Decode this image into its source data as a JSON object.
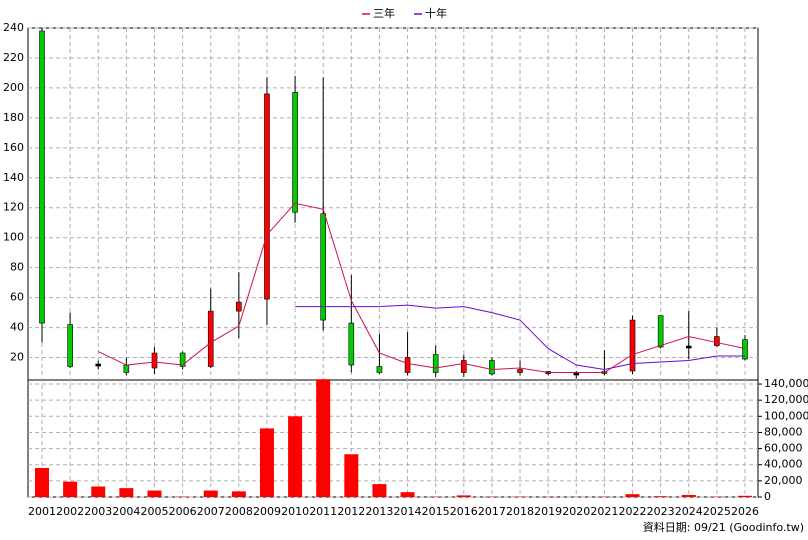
{
  "chart_data": {
    "type": "candlestick",
    "categories": [
      "2001",
      "2002",
      "2003",
      "2004",
      "2005",
      "2006",
      "2007",
      "2008",
      "2009",
      "2010",
      "2011",
      "2012",
      "2013",
      "2014",
      "2015",
      "2016",
      "2017",
      "2018",
      "2019",
      "2020",
      "2021",
      "2022",
      "2023",
      "2024",
      "2025",
      "2026"
    ],
    "open": [
      238,
      42,
      15,
      15,
      13,
      23,
      14,
      51,
      59,
      197,
      116,
      43,
      14,
      10,
      22,
      10,
      18,
      10,
      10,
      9,
      10,
      11,
      48,
      27,
      28,
      32
    ],
    "high": [
      240,
      50,
      18,
      20,
      27,
      24,
      66,
      77,
      207,
      208,
      207,
      75,
      36,
      37,
      28,
      22,
      20,
      18,
      11,
      11,
      25,
      48,
      48,
      51,
      40,
      35
    ],
    "low": [
      30,
      13,
      12,
      8,
      9,
      12,
      13,
      33,
      42,
      110,
      38,
      10,
      9,
      8,
      7,
      7,
      8,
      8,
      8,
      6,
      8,
      9,
      26,
      19,
      27,
      18
    ],
    "close": [
      43,
      14,
      15,
      10,
      23,
      14,
      51,
      57,
      196,
      117,
      45,
      15,
      10,
      20,
      10,
      18,
      9,
      12,
      10,
      9,
      9,
      45,
      27,
      27,
      34,
      19
    ],
    "up_color": "#ff0000",
    "down_color": "#00cc00",
    "flat_color": "#000000",
    "series": [
      {
        "name": "三年",
        "color": "#d0104c",
        "values": [
          null,
          null,
          24,
          15,
          17,
          15,
          30,
          41,
          102,
          123,
          119,
          58,
          23,
          16,
          13,
          16,
          12,
          13,
          10,
          10,
          10,
          22,
          28,
          34,
          30,
          26
        ]
      },
      {
        "name": "十年",
        "color": "#6a0dcc",
        "values": [
          null,
          null,
          null,
          null,
          null,
          null,
          null,
          null,
          null,
          54,
          54,
          54,
          54,
          55,
          53,
          54,
          50,
          45,
          26,
          15,
          12,
          16,
          17,
          18,
          21,
          21
        ]
      }
    ],
    "ylim": [
      5,
      240
    ],
    "yticks": [
      20,
      40,
      60,
      80,
      100,
      120,
      140,
      160,
      180,
      200,
      220,
      240
    ],
    "volume": {
      "color": "#ff0000",
      "values": [
        36000,
        19000,
        13000,
        11000,
        8000,
        500,
        8000,
        7000,
        85000,
        100000,
        146000,
        53000,
        16000,
        6000,
        500,
        2000,
        500,
        500,
        300,
        300,
        500,
        3500,
        1000,
        2500,
        500,
        1500
      ]
    },
    "y2lim": [
      0,
      145000
    ],
    "y2ticks": [
      0,
      {
        "value": 20000,
        "label": "20,000"
      },
      {
        "value": 40000,
        "label": "40,000"
      },
      {
        "value": 60000,
        "label": "60,000"
      },
      {
        "value": 80000,
        "label": "80,000"
      },
      {
        "value": 100000,
        "label": "100,000"
      },
      {
        "value": 120000,
        "label": "120,000"
      },
      {
        "value": 140000,
        "label": "140,000"
      }
    ],
    "grid": true,
    "footer": "資料日期: 09/21 (Goodinfo.tw)"
  }
}
